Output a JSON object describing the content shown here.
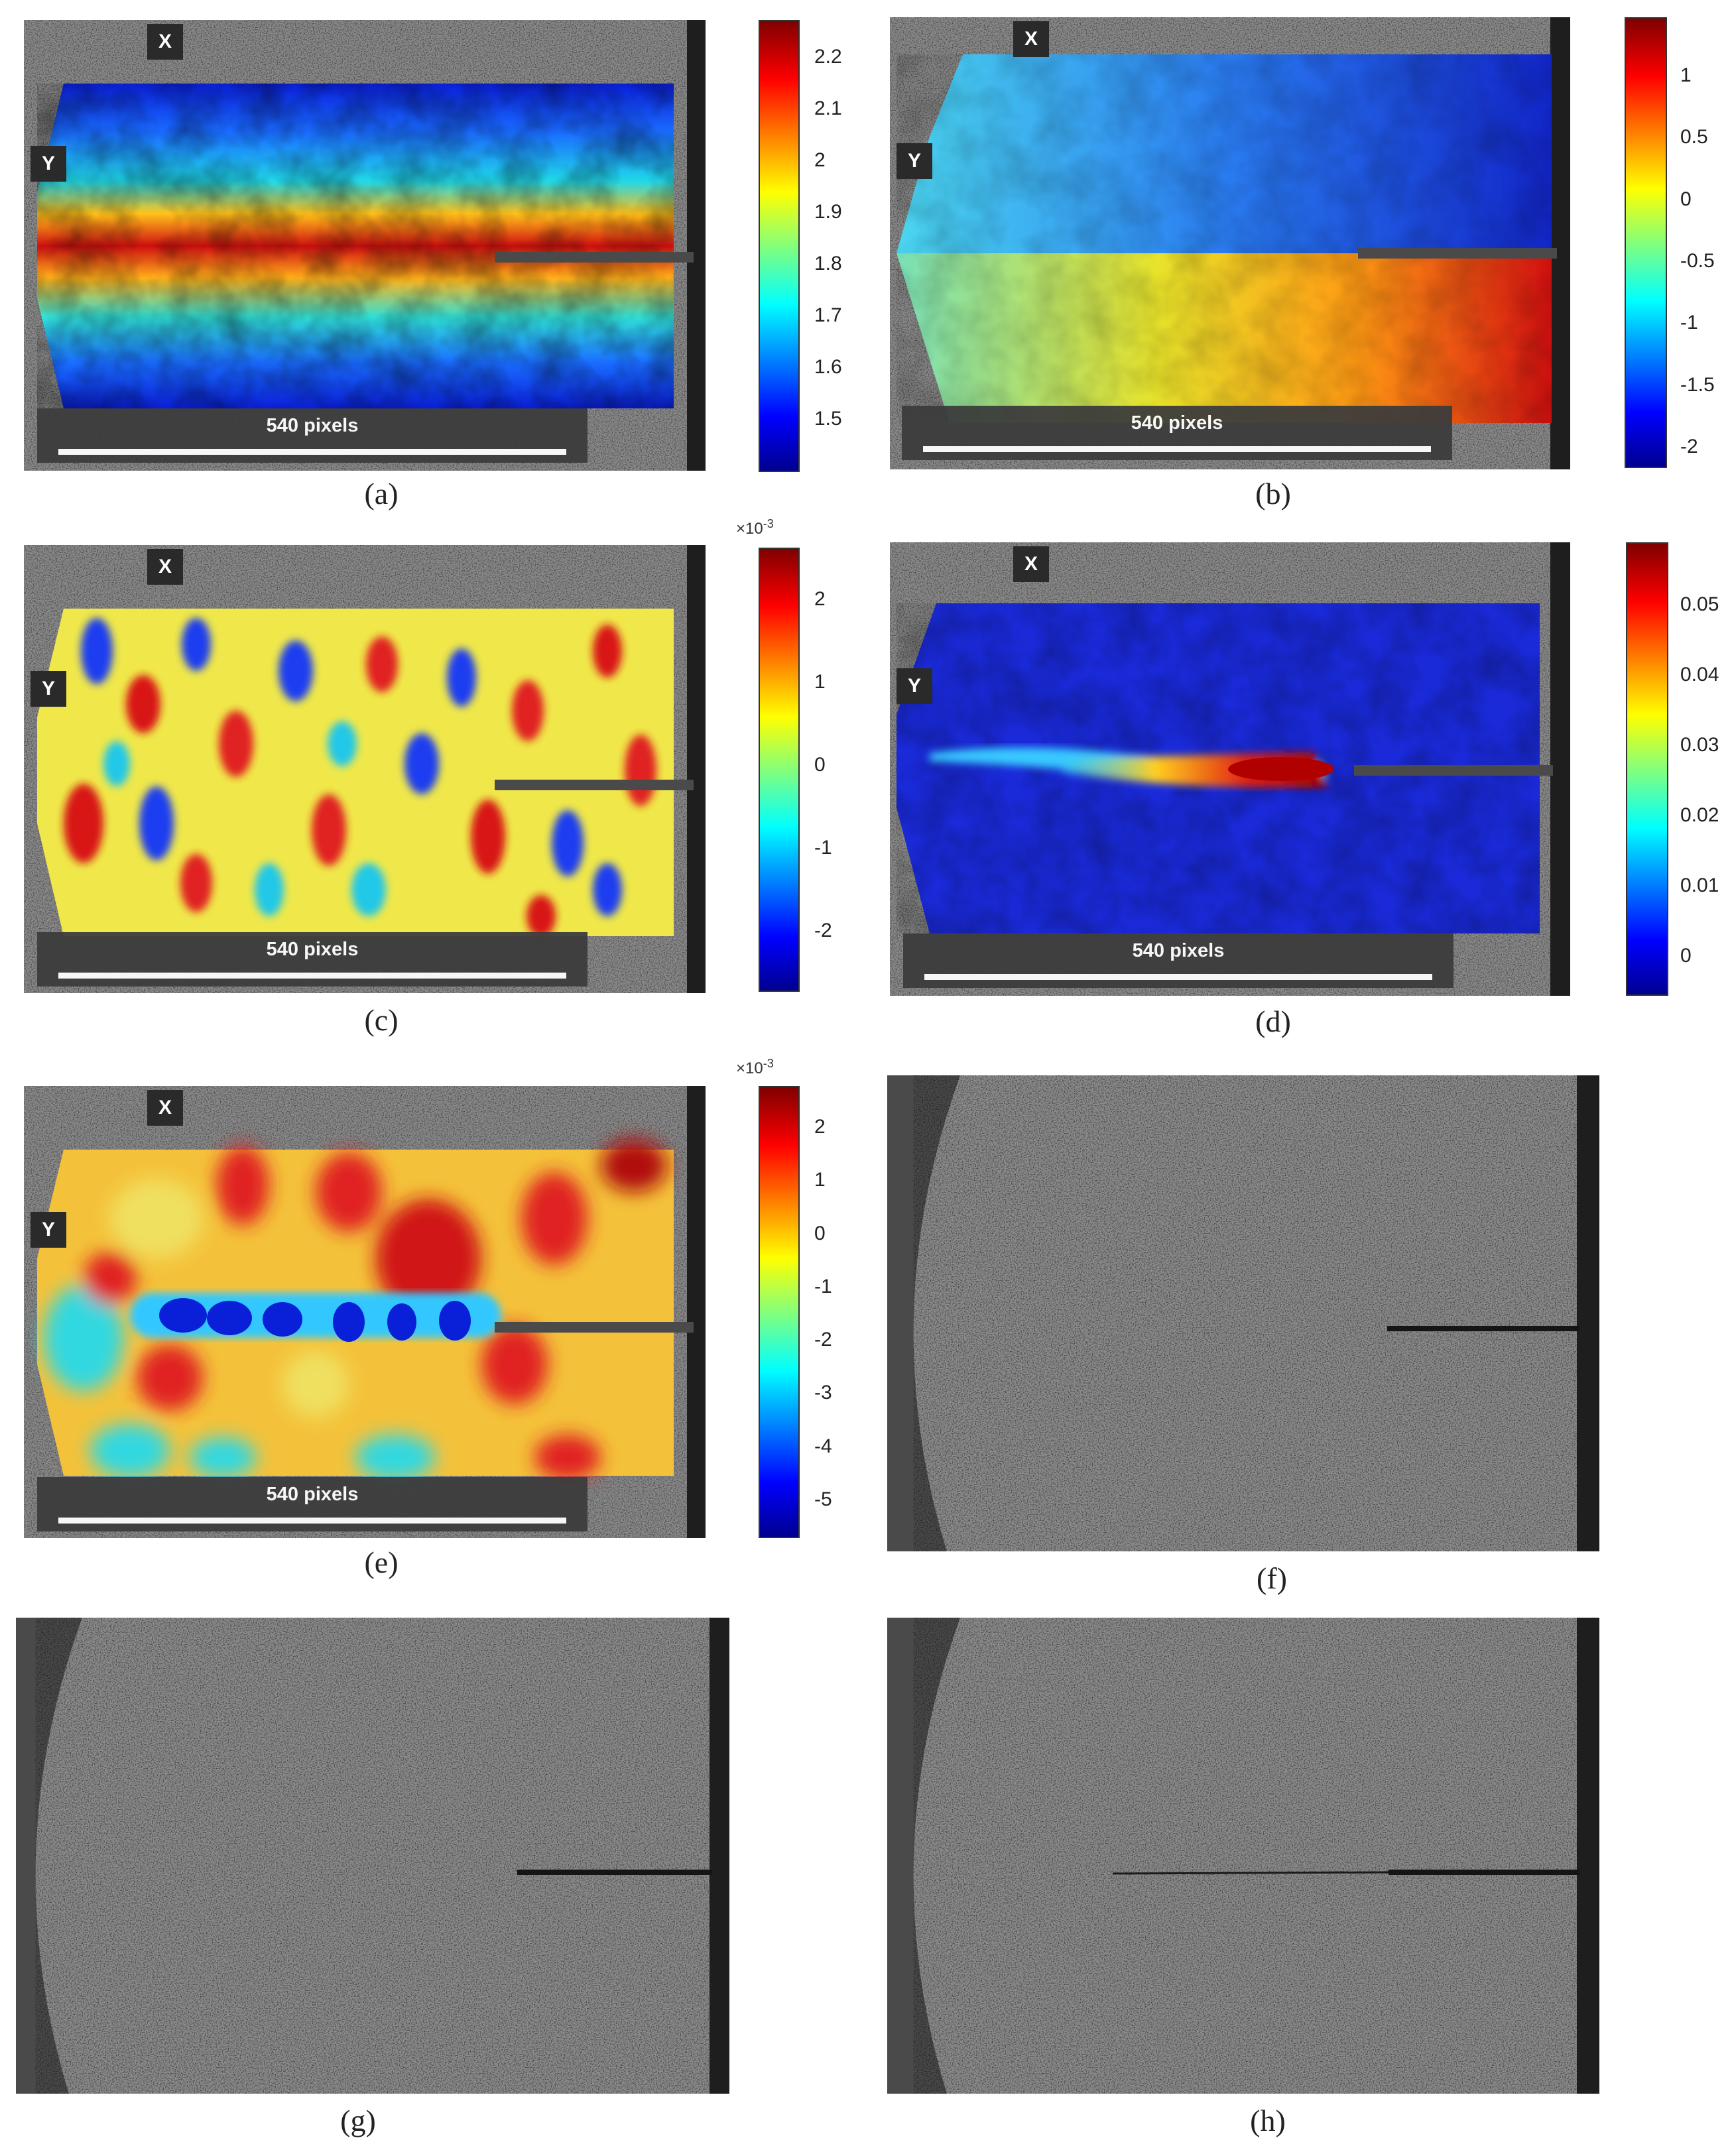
{
  "figure": {
    "colors": {
      "jet_stops": [
        "#00008f",
        "#0000ff",
        "#00ffff",
        "#ffff00",
        "#ff0000",
        "#800000"
      ],
      "speckle_bg": "#8a8a8a"
    },
    "panels": [
      {
        "id": "a",
        "caption": "(a)",
        "axis_x": "X",
        "axis_y": "Y",
        "scale_label": "540 pixels",
        "colorbar": {
          "ticks": [
            "2.2",
            "2.1",
            "2",
            "1.9",
            "1.8",
            "1.7",
            "1.6",
            "1.5"
          ],
          "exponent": ""
        }
      },
      {
        "id": "b",
        "caption": "(b)",
        "axis_x": "X",
        "axis_y": "Y",
        "scale_label": "540 pixels",
        "colorbar": {
          "ticks": [
            "1",
            "0.5",
            "0",
            "-0.5",
            "-1",
            "-1.5",
            "-2"
          ],
          "exponent": ""
        }
      },
      {
        "id": "c",
        "caption": "(c)",
        "axis_x": "X",
        "axis_y": "Y",
        "scale_label": "540 pixels",
        "colorbar": {
          "ticks": [
            "2",
            "1",
            "0",
            "-1",
            "-2"
          ],
          "exponent": "×10",
          "exponent_power": "-3"
        }
      },
      {
        "id": "d",
        "caption": "(d)",
        "axis_x": "X",
        "axis_y": "Y",
        "scale_label": "540 pixels",
        "colorbar": {
          "ticks": [
            "0.05",
            "0.04",
            "0.03",
            "0.02",
            "0.01",
            "0"
          ],
          "exponent": ""
        }
      },
      {
        "id": "e",
        "caption": "(e)",
        "axis_x": "X",
        "axis_y": "Y",
        "scale_label": "540 pixels",
        "colorbar": {
          "ticks": [
            "2",
            "1",
            "0",
            "-1",
            "-2",
            "-3",
            "-4",
            "-5"
          ],
          "exponent": "×10",
          "exponent_power": "-3"
        }
      },
      {
        "id": "f",
        "caption": "(f)"
      },
      {
        "id": "g",
        "caption": "(g)"
      },
      {
        "id": "h",
        "caption": "(h)"
      }
    ]
  }
}
